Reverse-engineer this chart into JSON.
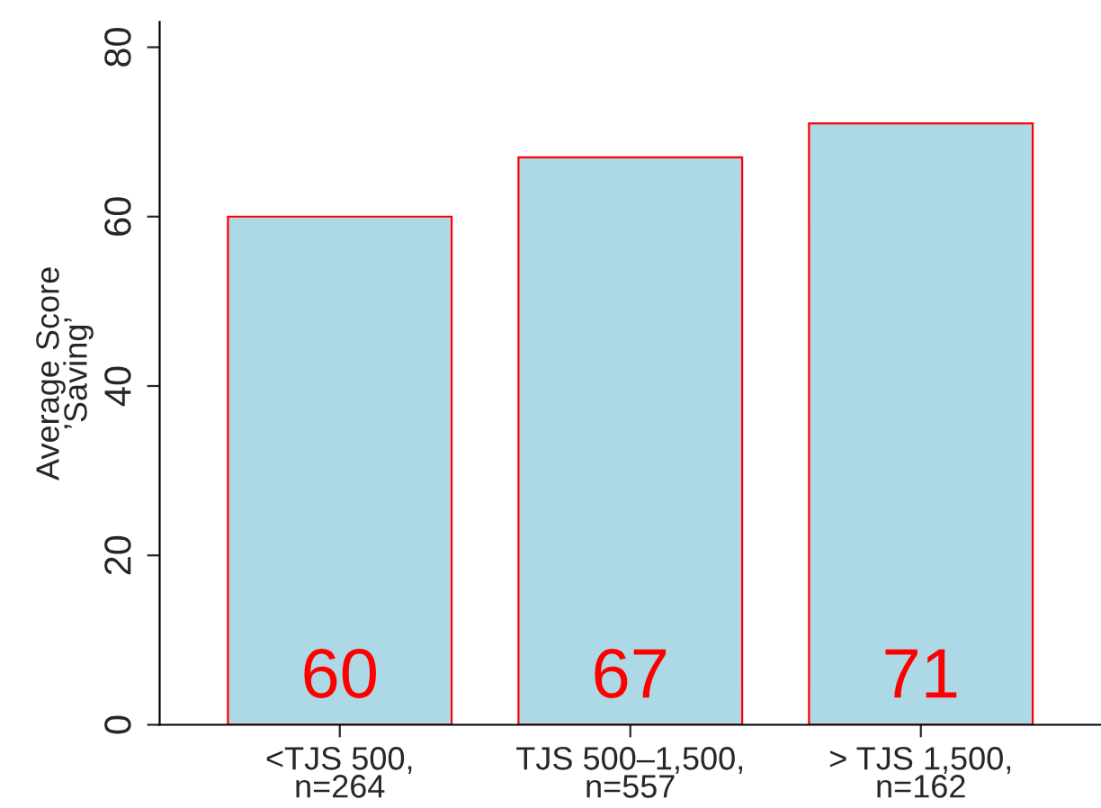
{
  "chart_data": {
    "type": "bar",
    "ylabel": "Average Score\n’Saving’",
    "categories": [
      "<TJS 500,\nn=264",
      "TJS 500–1,500,\nn=557",
      "> TJS 1,500,\nn=162"
    ],
    "values": [
      60,
      67,
      71
    ],
    "color": "#add8e6",
    "data_labels": true,
    "ylim": [
      0,
      83
    ],
    "yticks": [
      0,
      20,
      40,
      60,
      80
    ],
    "grid": false
  }
}
